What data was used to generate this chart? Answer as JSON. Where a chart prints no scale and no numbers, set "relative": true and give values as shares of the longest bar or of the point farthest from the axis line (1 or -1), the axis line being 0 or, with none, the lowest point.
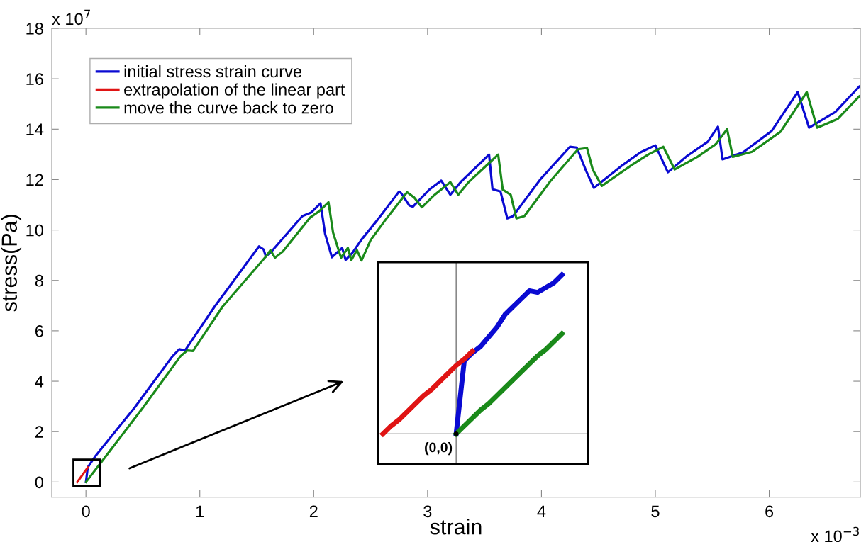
{
  "chart_data": [
    {
      "type": "line",
      "xlabel": "strain",
      "ylabel": "stress(Pa)",
      "xlim": [
        -0.3,
        6.8
      ],
      "ylim": [
        -0.6,
        18
      ],
      "xticks": [
        0,
        1,
        2,
        3,
        4,
        5,
        6
      ],
      "yticks": [
        0,
        2,
        4,
        6,
        8,
        10,
        12,
        14,
        16,
        18
      ],
      "grid": false,
      "legend": "top left",
      "annotations": [
        "x 10$^{7}$",
        "x 10$^{−3}$"
      ],
      "series": [
        {
          "name": "initial stress strain curve",
          "color": "#0a0ad2",
          "x": [
            0,
            0.016,
            0.078,
            0.43,
            0.76,
            0.82,
            0.87,
            1.13,
            1.52,
            1.56,
            1.58,
            1.64,
            1.9,
            1.98,
            2.06,
            2.1,
            2.16,
            2.25,
            2.28,
            2.34,
            2.42,
            2.56,
            2.75,
            2.77,
            2.84,
            2.87,
            2.96,
            3.02,
            3.12,
            3.2,
            3.29,
            3.54,
            3.57,
            3.64,
            3.7,
            3.75,
            3.99,
            4.25,
            4.31,
            4.39,
            4.46,
            4.72,
            4.87,
            5.0,
            5.11,
            5.28,
            5.46,
            5.55,
            5.59,
            5.77,
            6.02,
            6.25,
            6.35,
            6.58,
            6.79
          ],
          "values": [
            0,
            0.58,
            1.0,
            2.97,
            4.99,
            5.27,
            5.22,
            6.96,
            9.35,
            9.23,
            8.95,
            9.2,
            10.55,
            10.7,
            11.06,
            9.85,
            8.92,
            9.29,
            8.81,
            9.09,
            9.62,
            10.4,
            11.53,
            11.45,
            10.97,
            10.92,
            11.34,
            11.62,
            11.96,
            11.4,
            11.9,
            12.99,
            11.62,
            11.53,
            10.46,
            10.55,
            12.01,
            13.3,
            13.27,
            12.37,
            11.67,
            12.6,
            13.08,
            13.36,
            12.29,
            12.94,
            13.5,
            14.1,
            12.8,
            13.08,
            13.92,
            15.47,
            14.06,
            14.68,
            15.69
          ]
        },
        {
          "name": "extrapolation of the linear part",
          "color": "#e01414",
          "x": [
            -0.076,
            0.017
          ],
          "values": [
            0,
            0.58
          ]
        },
        {
          "name": "move the curve back to zero",
          "color": "#1a8a1a",
          "x": [
            0,
            0.16,
            0.5,
            0.83,
            0.89,
            0.94,
            1.2,
            1.59,
            1.62,
            1.66,
            1.73,
            1.97,
            2.05,
            2.13,
            2.17,
            2.24,
            2.3,
            2.33,
            2.38,
            2.42,
            2.5,
            2.63,
            2.82,
            2.88,
            2.95,
            3.05,
            3.2,
            3.27,
            3.36,
            3.62,
            3.66,
            3.73,
            3.78,
            3.85,
            4.08,
            4.32,
            4.4,
            4.45,
            4.53,
            4.8,
            4.94,
            5.07,
            5.17,
            5.37,
            5.53,
            5.63,
            5.68,
            5.85,
            6.1,
            6.33,
            6.42,
            6.6,
            6.79
          ],
          "values": [
            0,
            0.94,
            2.95,
            4.99,
            5.22,
            5.2,
            6.96,
            9.0,
            9.2,
            8.9,
            9.15,
            10.5,
            10.75,
            11.1,
            9.9,
            8.9,
            9.29,
            8.8,
            9.2,
            8.79,
            9.6,
            10.4,
            11.5,
            11.3,
            10.9,
            11.35,
            11.9,
            11.4,
            11.9,
            12.99,
            11.6,
            11.4,
            10.46,
            10.55,
            11.95,
            13.2,
            13.25,
            12.4,
            11.75,
            12.6,
            13.0,
            13.3,
            12.4,
            12.9,
            13.4,
            14.0,
            12.9,
            13.1,
            13.9,
            15.47,
            14.06,
            14.4,
            15.3
          ]
        }
      ]
    },
    {
      "type": "line",
      "relative": true,
      "annotations": [
        "(0,0)"
      ],
      "categories": [
        null,
        null,
        null,
        null,
        null,
        null,
        null,
        null,
        null,
        null,
        null,
        null,
        null,
        null,
        null,
        null,
        null,
        null,
        null,
        null,
        null,
        null,
        null
      ],
      "series": [
        {
          "color": "#0a0ad2",
          "values": [
            null,
            null,
            null,
            null,
            null,
            null,
            null,
            null,
            null,
            0,
            0.46,
            0.51,
            0.55,
            0.61,
            0.67,
            0.75,
            0.8,
            0.85,
            0.9,
            0.89,
            0.92,
            0.95,
            1.0
          ]
        },
        {
          "color": "#e01414",
          "values": [
            0,
            0.05,
            0.09,
            0.14,
            0.19,
            0.24,
            0.28,
            0.33,
            0.38,
            0.43,
            0.47,
            0.52,
            null,
            null,
            null,
            null,
            null,
            null,
            null,
            null,
            null,
            null,
            null
          ]
        },
        {
          "color": "#1a8a1a",
          "values": [
            null,
            null,
            null,
            null,
            null,
            null,
            null,
            null,
            null,
            0,
            0.05,
            0.1,
            0.15,
            0.19,
            0.24,
            0.29,
            0.34,
            0.39,
            0.44,
            0.49,
            0.53,
            0.58,
            0.63
          ]
        }
      ]
    }
  ]
}
